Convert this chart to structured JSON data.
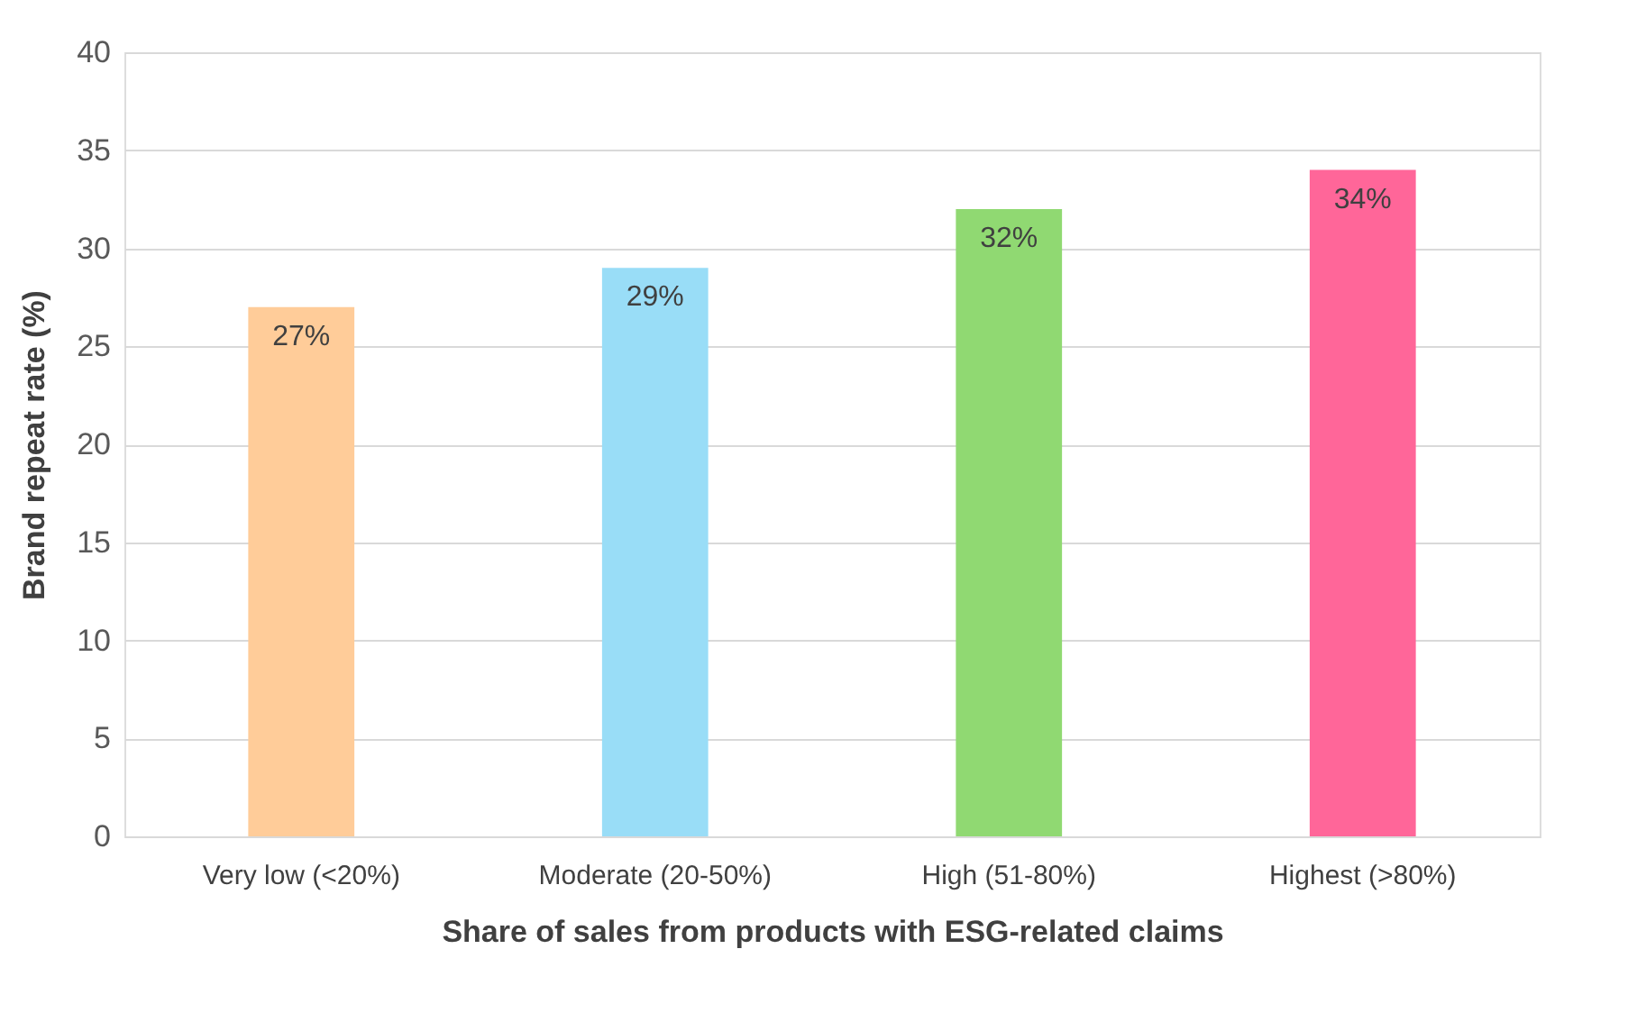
{
  "chart_data": {
    "type": "bar",
    "xlabel": "Share of sales from products with ESG-related claims",
    "ylabel": "Brand repeat rate (%)",
    "categories": [
      "Very low (<20%)",
      "Moderate (20-50%)",
      "High (51-80%)",
      "Highest (>80%)"
    ],
    "values": [
      27,
      29,
      32,
      34
    ],
    "colors": [
      "#ffcc99",
      "#99ddf7",
      "#90d972",
      "#ff6699"
    ],
    "value_labels": [
      "27%",
      "29%",
      "32%",
      "34%"
    ],
    "ylim": [
      0,
      40
    ],
    "yticks": [
      0,
      5,
      10,
      15,
      20,
      25,
      30,
      35,
      40
    ],
    "grid": "y",
    "legend": false
  }
}
